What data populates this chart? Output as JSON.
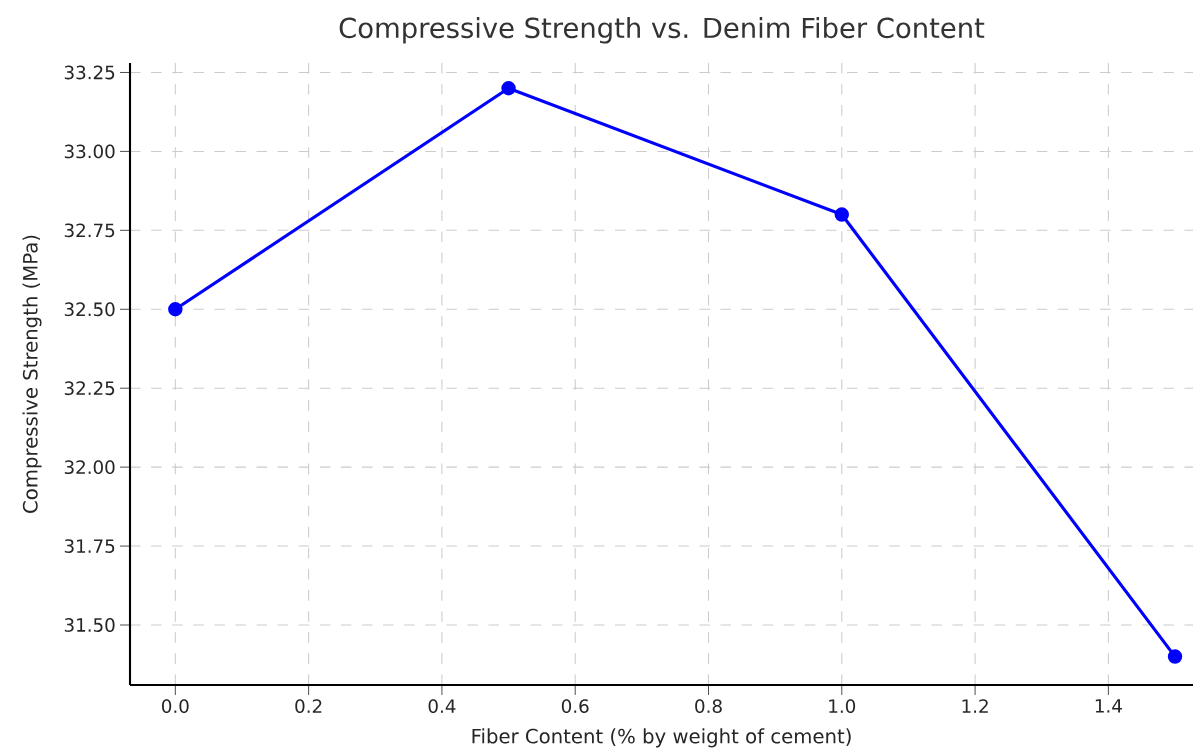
{
  "chart_data": {
    "type": "line",
    "title": "Compressive Strength vs. Denim Fiber Content",
    "xlabel": "Fiber Content (% by weight of cement)",
    "ylabel": "Compressive Strength (MPa)",
    "x": [
      0.0,
      0.5,
      1.0,
      1.5
    ],
    "series": [
      {
        "color": "#0000ff",
        "values": [
          32.5,
          33.2,
          32.8,
          31.4
        ]
      }
    ],
    "xlim": [
      -0.068,
      1.527
    ],
    "ylim": [
      31.31,
      33.28
    ],
    "xticks": [
      {
        "value": 0,
        "label": "0.0"
      },
      0.2,
      0.4,
      0.6,
      0.8,
      {
        "value": 1,
        "label": "1.0"
      },
      1.2,
      1.4
    ],
    "yticks": [
      {
        "value": 31.5,
        "label": "31.50"
      },
      31.75,
      {
        "value": 32,
        "label": "32.00"
      },
      32.25,
      {
        "value": 32.5,
        "label": "32.50"
      },
      32.75,
      {
        "value": 33,
        "label": "33.00"
      },
      33.25
    ],
    "grid": true,
    "marker": "circle",
    "line_style": "solid"
  }
}
